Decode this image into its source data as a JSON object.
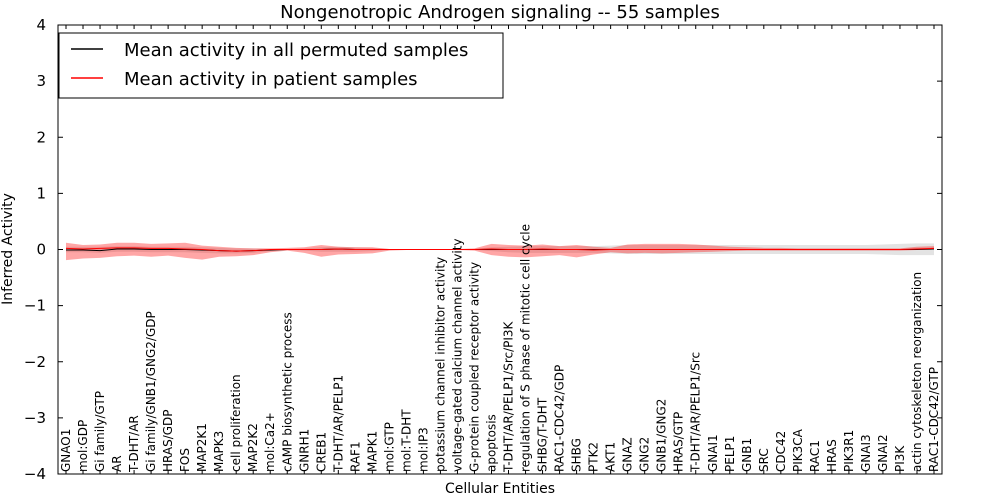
{
  "chart_data": {
    "type": "line",
    "title": "Nongenotropic Androgen signaling -- 55 samples",
    "xlabel": "Cellular Entities",
    "ylabel": "Inferred Activity",
    "ylim": [
      -4,
      4
    ],
    "yticks": [
      -4,
      -3,
      -2,
      -1,
      0,
      1,
      2,
      3,
      4
    ],
    "ytick_labels": [
      "−4",
      "−3",
      "−2",
      "−1",
      "0",
      "1",
      "2",
      "3",
      "4"
    ],
    "legend_position": "top-left",
    "categories": [
      "GNAO1",
      "mol:GDP",
      "Gi family/GTP",
      "AR",
      "T-DHT/AR",
      "Gi family/GNB1/GNG2/GDP",
      "HRAS/GDP",
      "FOS",
      "MAP2K1",
      "MAPK3",
      "cell proliferation",
      "MAP2K2",
      "mol:Ca2+",
      "cAMP biosynthetic process",
      "GNRH1",
      "CREB1",
      "T-DHT/AR/PELP1",
      "RAF1",
      "MAPK1",
      "mol:GTP",
      "mol:T-DHT",
      "mol:IP3",
      "potassium channel inhibitor activity",
      "voltage-gated calcium channel activity",
      "G-protein coupled receptor activity",
      "apoptosis",
      "T-DHT/AR/PELP1/Src/PI3K",
      "regulation of S phase of mitotic cell cycle",
      "SHBG/T-DHT",
      "RAC1-CDC42/GDP",
      "SHBG",
      "PTK2",
      "AKT1",
      "GNAZ",
      "GNG2",
      "GNB1/GNG2",
      "HRAS/GTP",
      "T-DHT/AR/PELP1/Src",
      "GNAI1",
      "PELP1",
      "GNB1",
      "SRC",
      "CDC42",
      "PIK3CA",
      "RAC1",
      "HRAS",
      "PIK3R1",
      "GNAI3",
      "GNAI2",
      "PI3K",
      "actin cytoskeleton reorganization",
      "RAC1-CDC42/GTP"
    ],
    "series": [
      {
        "name": "Mean activity in all permuted samples",
        "color": "#000000",
        "values": [
          -0.01,
          -0.01,
          -0.02,
          0.01,
          0.01,
          0.0,
          0.0,
          0.0,
          -0.01,
          -0.02,
          -0.03,
          -0.02,
          -0.01,
          0.0,
          0.0,
          0.0,
          0.01,
          0.0,
          0.0,
          0.0,
          0.0,
          0.0,
          0.0,
          0.0,
          0.0,
          0.0,
          0.0,
          0.0,
          0.0,
          0.0,
          0.0,
          0.0,
          0.0,
          0.0,
          0.0,
          0.0,
          0.0,
          0.0,
          0.0,
          0.0,
          0.0,
          0.0,
          0.0,
          0.0,
          0.0,
          0.0,
          0.0,
          0.0,
          0.0,
          0.0,
          0.0,
          0.01
        ],
        "band_lower": [
          -0.05,
          -0.05,
          -0.06,
          -0.04,
          -0.04,
          -0.05,
          -0.05,
          -0.05,
          -0.06,
          -0.07,
          -0.07,
          -0.06,
          -0.03,
          -0.01,
          -0.02,
          -0.04,
          -0.04,
          -0.04,
          -0.03,
          -0.01,
          -0.01,
          -0.01,
          -0.01,
          -0.01,
          -0.01,
          -0.03,
          -0.05,
          -0.06,
          -0.06,
          -0.06,
          -0.06,
          -0.06,
          -0.07,
          -0.08,
          -0.08,
          -0.08,
          -0.08,
          -0.08,
          -0.08,
          -0.08,
          -0.08,
          -0.08,
          -0.08,
          -0.08,
          -0.08,
          -0.08,
          -0.08,
          -0.08,
          -0.09,
          -0.1,
          -0.1,
          -0.1
        ],
        "band_upper": [
          0.05,
          0.05,
          0.05,
          0.06,
          0.06,
          0.05,
          0.05,
          0.05,
          0.04,
          0.03,
          0.02,
          0.02,
          0.01,
          0.01,
          0.02,
          0.04,
          0.05,
          0.04,
          0.03,
          0.01,
          0.01,
          0.01,
          0.01,
          0.01,
          0.01,
          0.04,
          0.05,
          0.06,
          0.06,
          0.06,
          0.06,
          0.06,
          0.07,
          0.08,
          0.08,
          0.08,
          0.08,
          0.08,
          0.08,
          0.08,
          0.08,
          0.08,
          0.08,
          0.08,
          0.08,
          0.08,
          0.08,
          0.08,
          0.09,
          0.1,
          0.11,
          0.11
        ]
      },
      {
        "name": "Mean activity in patient samples",
        "color": "#ff0000",
        "values": [
          0.02,
          0.01,
          0.02,
          0.03,
          0.03,
          0.02,
          0.02,
          0.01,
          0.0,
          -0.02,
          -0.03,
          -0.02,
          0.0,
          0.0,
          0.0,
          0.0,
          0.01,
          0.0,
          0.0,
          0.0,
          0.0,
          0.0,
          0.0,
          0.0,
          0.0,
          0.01,
          0.0,
          0.0,
          0.01,
          0.0,
          0.0,
          -0.01,
          0.0,
          0.0,
          0.0,
          0.0,
          0.0,
          0.0,
          0.0,
          0.0,
          0.0,
          0.0,
          0.0,
          0.0,
          0.0,
          0.0,
          0.0,
          0.0,
          0.0,
          0.0,
          0.01,
          0.02
        ],
        "band_lower": [
          -0.19,
          -0.16,
          -0.15,
          -0.12,
          -0.11,
          -0.13,
          -0.11,
          -0.15,
          -0.18,
          -0.13,
          -0.12,
          -0.1,
          -0.05,
          -0.02,
          -0.06,
          -0.13,
          -0.09,
          -0.08,
          -0.07,
          -0.02,
          -0.01,
          -0.01,
          -0.01,
          -0.01,
          -0.02,
          -0.1,
          -0.13,
          -0.14,
          -0.12,
          -0.1,
          -0.14,
          -0.09,
          -0.05,
          -0.07,
          -0.06,
          -0.07,
          -0.06,
          -0.05,
          -0.04,
          -0.03,
          -0.02,
          -0.02,
          -0.02,
          -0.02,
          -0.02,
          -0.02,
          -0.02,
          -0.02,
          -0.02,
          -0.02,
          -0.01,
          0.0
        ],
        "band_upper": [
          0.12,
          0.08,
          0.09,
          0.12,
          0.12,
          0.1,
          0.11,
          0.12,
          0.07,
          0.05,
          0.03,
          0.02,
          0.02,
          0.03,
          0.04,
          0.08,
          0.05,
          0.04,
          0.04,
          0.01,
          0.01,
          0.01,
          0.01,
          0.01,
          0.02,
          0.1,
          0.08,
          0.07,
          0.09,
          0.06,
          0.08,
          0.05,
          0.03,
          0.09,
          0.1,
          0.1,
          0.1,
          0.09,
          0.07,
          0.05,
          0.04,
          0.03,
          0.03,
          0.02,
          0.02,
          0.02,
          0.02,
          0.02,
          0.02,
          0.02,
          0.05,
          0.06
        ]
      }
    ]
  }
}
